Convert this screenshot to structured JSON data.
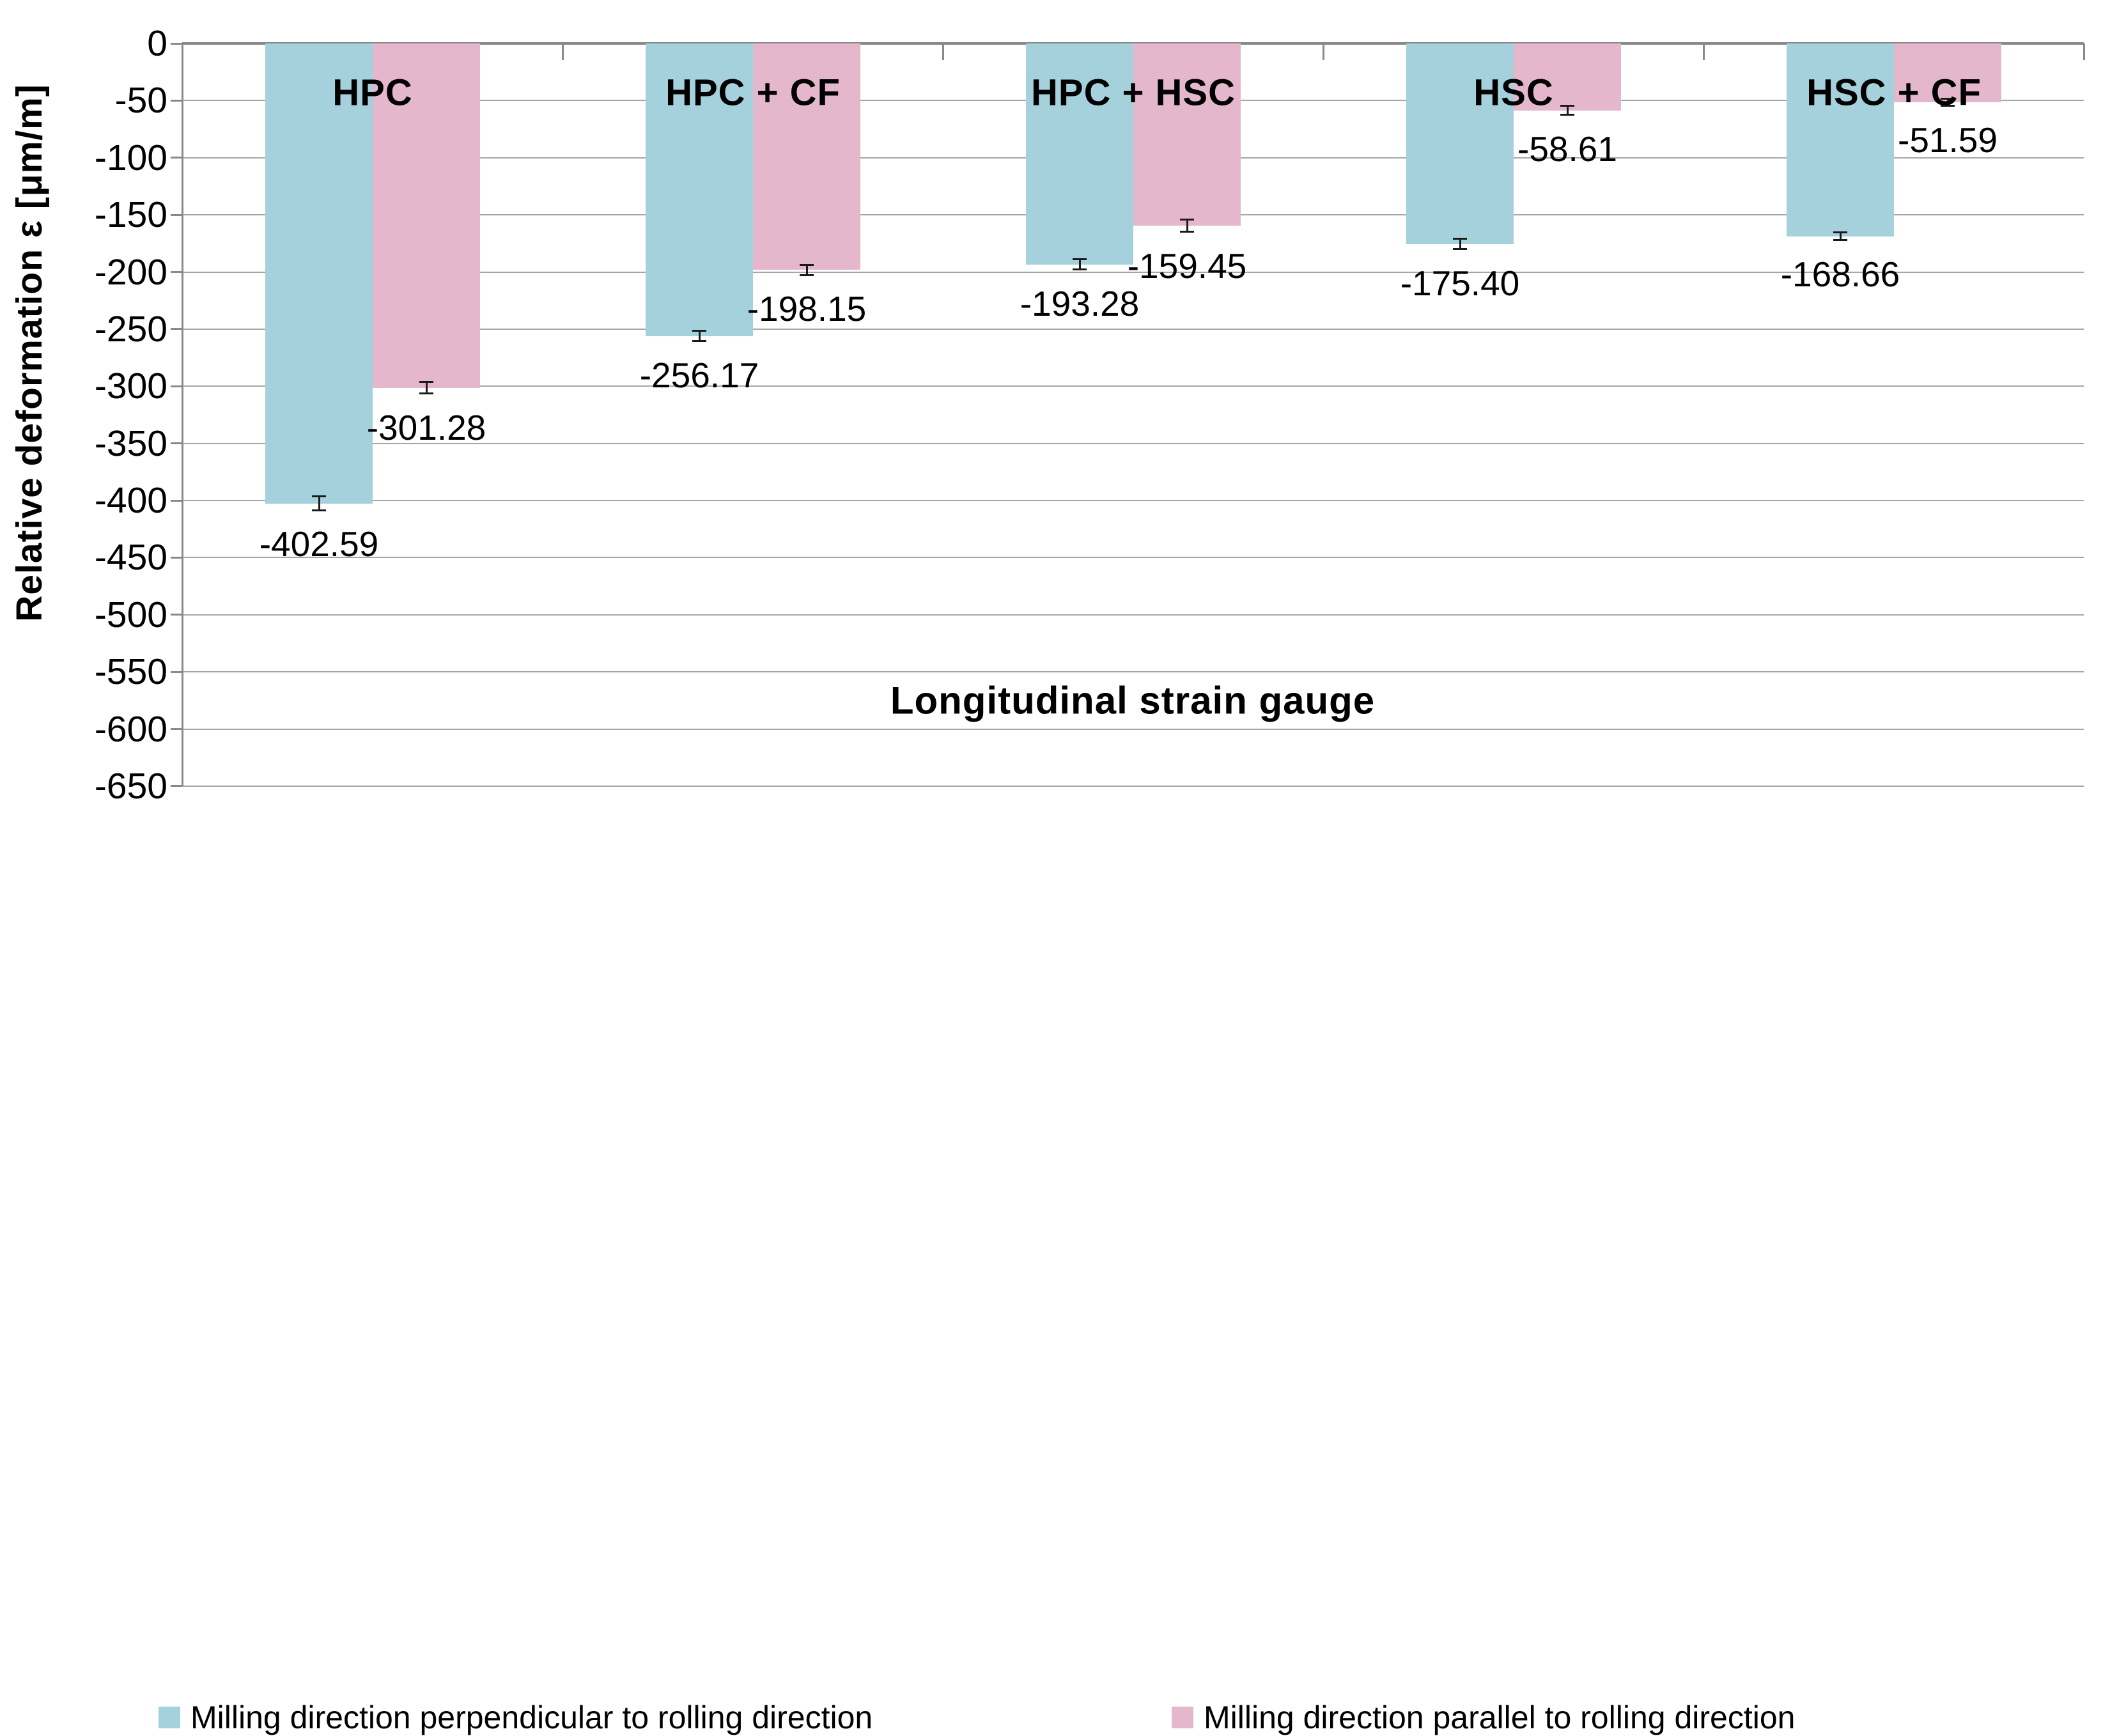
{
  "chart_data": {
    "type": "bar",
    "orientation": "vertical",
    "annotation": "Longitudinal strain gauge",
    "ylabel": "Relative deformation ε [μm/m]",
    "categories": [
      "HPC",
      "HPC + CF",
      "HPC + HSC",
      "HSC",
      "HSC + CF"
    ],
    "series": [
      {
        "name": "Milling direction perpendicular to rolling direction",
        "color": "#A4D1DC",
        "values": [
          -402.59,
          -256.17,
          -193.28,
          -175.4,
          -168.66
        ],
        "labels": [
          "-402.59",
          "-256.17",
          "-193.28",
          "-175.40",
          "-168.66"
        ],
        "error_bars": [
          6,
          4.5,
          4.5,
          4.5,
          3.5
        ]
      },
      {
        "name": "Milling direction parallel to rolling direction",
        "color": "#E4B7CC",
        "values": [
          -301.28,
          -198.15,
          -159.45,
          -58.61,
          -51.59
        ],
        "labels": [
          "-301.28",
          "-198.15",
          "-159.45",
          "-58.61",
          "-51.59"
        ],
        "error_bars": [
          5,
          4.5,
          5.5,
          4,
          3
        ]
      }
    ],
    "ylim": [
      -650,
      0
    ],
    "ytick_step": 50,
    "yticks": [
      "0",
      "-50",
      "-100",
      "-150",
      "-200",
      "-250",
      "-300",
      "-350",
      "-400",
      "-450",
      "-500",
      "-550",
      "-600",
      "-650"
    ],
    "grid": "horizontal",
    "legend_position": "bottom"
  }
}
